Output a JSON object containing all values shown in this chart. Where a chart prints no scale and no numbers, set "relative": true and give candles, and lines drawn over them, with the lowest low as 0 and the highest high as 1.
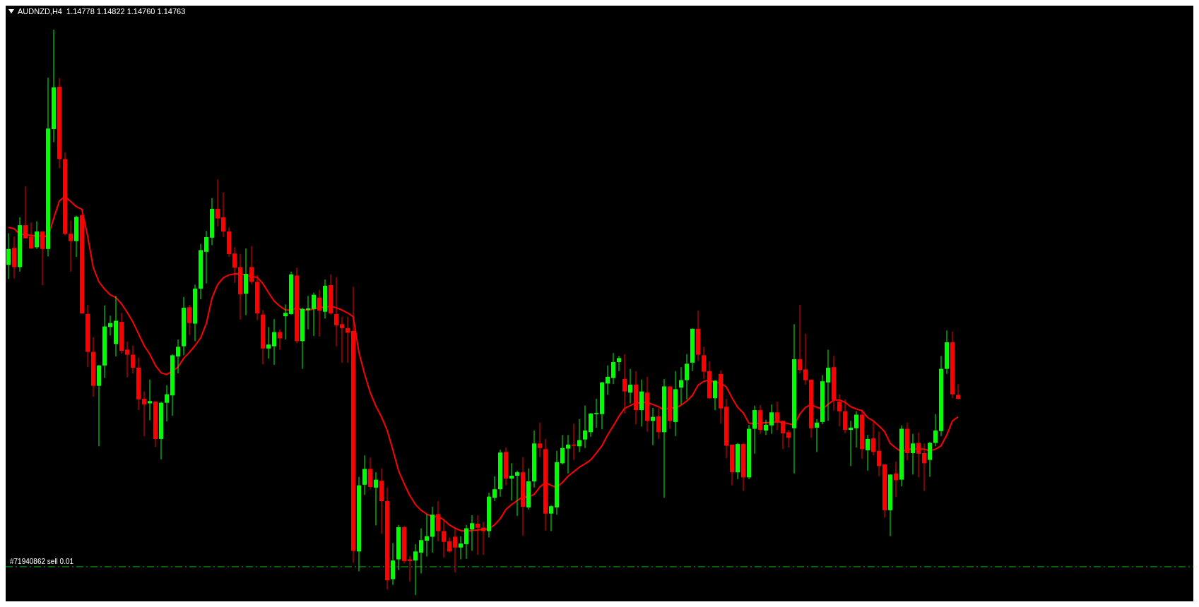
{
  "chart_data": {
    "type": "candlestick",
    "title": "AUDNZD,H4  1.14778 1.14822 1.14760 1.14763",
    "relative": true,
    "tick_labels": false,
    "categories": [
      null,
      null,
      null,
      null,
      null,
      null,
      null,
      null,
      null,
      null,
      null,
      null,
      null,
      null,
      null,
      null,
      null,
      null,
      null,
      null,
      null,
      null,
      null,
      null,
      null,
      null,
      null,
      null,
      null,
      null,
      null,
      null,
      null,
      null,
      null,
      null,
      null,
      null,
      null,
      null,
      null,
      null,
      null,
      null,
      null,
      null,
      null,
      null,
      null,
      null,
      null,
      null,
      null,
      null,
      null,
      null,
      null,
      null,
      null,
      null,
      null,
      null,
      null,
      null,
      null,
      null,
      null,
      null,
      null,
      null,
      null,
      null,
      null,
      null,
      null,
      null,
      null,
      null,
      null,
      null,
      null,
      null,
      null,
      null,
      null,
      null,
      null,
      null,
      null,
      null,
      null,
      null,
      null,
      null,
      null,
      null,
      null,
      null,
      null,
      null,
      null,
      null,
      null,
      null,
      null,
      null,
      null,
      null,
      null,
      null,
      null,
      null,
      null,
      null,
      null,
      null,
      null,
      null,
      null,
      null,
      null,
      null,
      null,
      null,
      null,
      null,
      null,
      null,
      null,
      null,
      null,
      null,
      null,
      null,
      null,
      null,
      null,
      null,
      null,
      null,
      null,
      null,
      null,
      null,
      null,
      null,
      null,
      null,
      null,
      null,
      null,
      null,
      null,
      null,
      null,
      null,
      null,
      null,
      null,
      null,
      null,
      null,
      null,
      null,
      null,
      null,
      null,
      null,
      null
    ],
    "ohlc": [
      [
        0.584,
        0.64,
        0.559,
        0.612
      ],
      [
        0.614,
        0.634,
        0.56,
        0.58
      ],
      [
        0.58,
        0.668,
        0.572,
        0.654
      ],
      [
        0.654,
        0.723,
        0.631,
        0.631
      ],
      [
        0.634,
        0.659,
        0.612,
        0.613
      ],
      [
        0.615,
        0.661,
        0.612,
        0.643
      ],
      [
        0.643,
        0.643,
        0.548,
        0.612
      ],
      [
        0.612,
        0.915,
        0.599,
        0.825
      ],
      [
        0.824,
        1,
        0.801,
        0.898
      ],
      [
        0.899,
        0.914,
        0.755,
        0.771
      ],
      [
        0.771,
        0.783,
        0.636,
        0.639
      ],
      [
        0.639,
        0.662,
        0.572,
        0.626
      ],
      [
        0.626,
        0.671,
        0.598,
        0.669
      ],
      [
        0.672,
        0.672,
        0.498,
        0.498
      ],
      [
        0.497,
        0.513,
        0.403,
        0.43
      ],
      [
        0.43,
        0.456,
        0.351,
        0.37
      ],
      [
        0.37,
        0.407,
        0.263,
        0.406
      ],
      [
        0.406,
        0.512,
        0.384,
        0.475
      ],
      [
        0.474,
        0.494,
        0.459,
        0.481
      ],
      [
        0.444,
        0.529,
        0.422,
        0.485
      ],
      [
        0.483,
        0.499,
        0.427,
        0.432
      ],
      [
        0.434,
        0.448,
        0.385,
        0.425
      ],
      [
        0.425,
        0.441,
        0.392,
        0.402
      ],
      [
        0.402,
        0.42,
        0.327,
        0.346
      ],
      [
        0.347,
        0.36,
        0.281,
        0.337
      ],
      [
        0.339,
        0.381,
        0.309,
        0.343
      ],
      [
        0.342,
        0.342,
        0.262,
        0.276
      ],
      [
        0.276,
        0.342,
        0.24,
        0.34
      ],
      [
        0.34,
        0.371,
        0.307,
        0.355
      ],
      [
        0.353,
        0.426,
        0.317,
        0.424
      ],
      [
        0.422,
        0.452,
        0.392,
        0.439
      ],
      [
        0.44,
        0.527,
        0.424,
        0.508
      ],
      [
        0.509,
        0.513,
        0.46,
        0.481
      ],
      [
        0.48,
        0.549,
        0.449,
        0.542
      ],
      [
        0.542,
        0.621,
        0.523,
        0.61
      ],
      [
        0.607,
        0.644,
        0.551,
        0.633
      ],
      [
        0.632,
        0.702,
        0.619,
        0.683
      ],
      [
        0.683,
        0.735,
        0.652,
        0.666
      ],
      [
        0.668,
        0.712,
        0.633,
        0.643
      ],
      [
        0.643,
        0.65,
        0.598,
        0.603
      ],
      [
        0.604,
        0.615,
        0.552,
        0.579
      ],
      [
        0.58,
        0.603,
        0.487,
        0.532
      ],
      [
        0.533,
        0.613,
        0.495,
        0.568
      ],
      [
        0.58,
        0.617,
        0.55,
        0.554
      ],
      [
        0.554,
        0.566,
        0.486,
        0.498
      ],
      [
        0.496,
        0.504,
        0.408,
        0.436
      ],
      [
        0.436,
        0.474,
        0.418,
        0.443
      ],
      [
        0.44,
        0.488,
        0.407,
        0.465
      ],
      [
        0.465,
        0.47,
        0.434,
        0.454
      ],
      [
        0.493,
        0.514,
        0.452,
        0.499
      ],
      [
        0.497,
        0.572,
        0.496,
        0.567
      ],
      [
        0.565,
        0.579,
        0.445,
        0.449
      ],
      [
        0.449,
        0.508,
        0.4,
        0.506
      ],
      [
        0.504,
        0.529,
        0.47,
        0.507
      ],
      [
        0.506,
        0.535,
        0.458,
        0.531
      ],
      [
        0.526,
        0.54,
        0.457,
        0.503
      ],
      [
        0.501,
        0.558,
        0.489,
        0.547
      ],
      [
        0.548,
        0.567,
        0.496,
        0.498
      ],
      [
        0.497,
        0.562,
        0.44,
        0.477
      ],
      [
        0.479,
        0.492,
        0.411,
        0.472
      ],
      [
        0.472,
        0.492,
        0.411,
        0.464
      ],
      [
        0.467,
        0.545,
        0.057,
        0.078
      ],
      [
        0.077,
        0.209,
        0.042,
        0.194
      ],
      [
        0.195,
        0.247,
        0.177,
        0.223
      ],
      [
        0.223,
        0.243,
        0.187,
        0.191
      ],
      [
        0.19,
        0.217,
        0.123,
        0.204
      ],
      [
        0.202,
        0.224,
        0.108,
        0.166
      ],
      [
        0.166,
        0.19,
        0.01,
        0.026
      ],
      [
        0.028,
        0.092,
        0.018,
        0.061
      ],
      [
        0.063,
        0.124,
        0.044,
        0.12
      ],
      [
        0.12,
        0.122,
        0.056,
        0.06
      ],
      [
        0.063,
        0.069,
        0.024,
        0.06
      ],
      [
        0.061,
        0.09,
        0,
        0.077
      ],
      [
        0.075,
        0.118,
        0.038,
        0.097
      ],
      [
        0.096,
        0.143,
        0.068,
        0.104
      ],
      [
        0.103,
        0.156,
        0.075,
        0.142
      ],
      [
        0.143,
        0.166,
        0.095,
        0.113
      ],
      [
        0.113,
        0.134,
        0.066,
        0.094
      ],
      [
        0.095,
        0.102,
        0.075,
        0.077
      ],
      [
        0.103,
        0.12,
        0.04,
        0.084
      ],
      [
        0.084,
        0.104,
        0.063,
        0.091
      ],
      [
        0.09,
        0.124,
        0.064,
        0.118
      ],
      [
        0.116,
        0.141,
        0.078,
        0.127
      ],
      [
        0.126,
        0.141,
        0.071,
        0.119
      ],
      [
        0.119,
        0.129,
        0.071,
        0.113
      ],
      [
        0.113,
        0.181,
        0.102,
        0.174
      ],
      [
        0.172,
        0.21,
        0.166,
        0.187
      ],
      [
        0.187,
        0.257,
        0.174,
        0.252
      ],
      [
        0.253,
        0.261,
        0.194,
        0.206
      ],
      [
        0.206,
        0.233,
        0.167,
        0.211
      ],
      [
        0.211,
        0.22,
        0.14,
        0.217
      ],
      [
        0.217,
        0.244,
        0.105,
        0.156
      ],
      [
        0.155,
        0.224,
        0.151,
        0.201
      ],
      [
        0.201,
        0.291,
        0.19,
        0.268
      ],
      [
        0.268,
        0.305,
        0.244,
        0.26
      ],
      [
        0.258,
        0.276,
        0.114,
        0.144
      ],
      [
        0.144,
        0.159,
        0.113,
        0.157
      ],
      [
        0.155,
        0.255,
        0.142,
        0.235
      ],
      [
        0.233,
        0.283,
        0.231,
        0.26
      ],
      [
        0.259,
        0.283,
        0.215,
        0.266
      ],
      [
        0.266,
        0.303,
        0.239,
        0.264
      ],
      [
        0.263,
        0.311,
        0.253,
        0.274
      ],
      [
        0.275,
        0.335,
        0.26,
        0.291
      ],
      [
        0.288,
        0.322,
        0.28,
        0.321
      ],
      [
        0.32,
        0.347,
        0.296,
        0.322
      ],
      [
        0.32,
        0.377,
        0.293,
        0.376
      ],
      [
        0.374,
        0.406,
        0.354,
        0.386
      ],
      [
        0.384,
        0.428,
        0.373,
        0.412
      ],
      [
        0.412,
        0.423,
        0.396,
        0.419
      ],
      [
        0.382,
        0.426,
        0.321,
        0.36
      ],
      [
        0.358,
        0.4,
        0.339,
        0.372
      ],
      [
        0.372,
        0.396,
        0.302,
        0.327
      ],
      [
        0.327,
        0.381,
        0.298,
        0.36
      ],
      [
        0.358,
        0.386,
        0.289,
        0.308
      ],
      [
        0.308,
        0.331,
        0.265,
        0.315
      ],
      [
        0.316,
        0.331,
        0.276,
        0.288
      ],
      [
        0.288,
        0.382,
        0.172,
        0.369
      ],
      [
        0.369,
        0.369,
        0.294,
        0.308
      ],
      [
        0.306,
        0.396,
        0.281,
        0.364
      ],
      [
        0.367,
        0.403,
        0.337,
        0.38
      ],
      [
        0.38,
        0.426,
        0.346,
        0.409
      ],
      [
        0.411,
        0.471,
        0.396,
        0.471
      ],
      [
        0.471,
        0.503,
        0.414,
        0.425
      ],
      [
        0.424,
        0.439,
        0.382,
        0.395
      ],
      [
        0.396,
        0.413,
        0.347,
        0.348
      ],
      [
        0.348,
        0.38,
        0.327,
        0.379
      ],
      [
        0.391,
        0.397,
        0.303,
        0.33
      ],
      [
        0.333,
        0.347,
        0.242,
        0.264
      ],
      [
        0.266,
        0.266,
        0.194,
        0.217
      ],
      [
        0.217,
        0.269,
        0.205,
        0.267
      ],
      [
        0.267,
        0.269,
        0.184,
        0.208
      ],
      [
        0.208,
        0.301,
        0.205,
        0.294
      ],
      [
        0.294,
        0.335,
        0.25,
        0.327
      ],
      [
        0.327,
        0.336,
        0.285,
        0.292
      ],
      [
        0.291,
        0.31,
        0.283,
        0.301
      ],
      [
        0.3,
        0.337,
        0.285,
        0.323
      ],
      [
        0.323,
        0.342,
        0.292,
        0.305
      ],
      [
        0.308,
        0.308,
        0.258,
        0.286
      ],
      [
        0.288,
        0.292,
        0.261,
        0.278
      ],
      [
        0.295,
        0.479,
        0.215,
        0.417
      ],
      [
        0.417,
        0.513,
        0.392,
        0.398
      ],
      [
        0.399,
        0.462,
        0.372,
        0.38
      ],
      [
        0.381,
        0.381,
        0.278,
        0.295
      ],
      [
        0.296,
        0.311,
        0.253,
        0.305
      ],
      [
        0.306,
        0.389,
        0.302,
        0.378
      ],
      [
        0.376,
        0.434,
        0.308,
        0.402
      ],
      [
        0.403,
        0.423,
        0.326,
        0.345
      ],
      [
        0.342,
        0.355,
        0.298,
        0.325
      ],
      [
        0.325,
        0.346,
        0.286,
        0.292
      ],
      [
        0.292,
        0.308,
        0.228,
        0.296
      ],
      [
        0.295,
        0.325,
        0.261,
        0.319
      ],
      [
        0.319,
        0.328,
        0.241,
        0.258
      ],
      [
        0.256,
        0.283,
        0.22,
        0.276
      ],
      [
        0.277,
        0.306,
        0.247,
        0.253
      ],
      [
        0.255,
        0.289,
        0.21,
        0.228
      ],
      [
        0.231,
        0.231,
        0.137,
        0.15
      ],
      [
        0.15,
        0.213,
        0.104,
        0.213
      ],
      [
        0.215,
        0.236,
        0.173,
        0.203
      ],
      [
        0.204,
        0.3,
        0.192,
        0.294
      ],
      [
        0.294,
        0.305,
        0.238,
        0.251
      ],
      [
        0.251,
        0.285,
        0.213,
        0.268
      ],
      [
        0.269,
        0.287,
        0.208,
        0.25
      ],
      [
        0.251,
        0.268,
        0.184,
        0.233
      ],
      [
        0.239,
        0.271,
        0.209,
        0.269
      ],
      [
        0.269,
        0.32,
        0.263,
        0.291
      ],
      [
        0.29,
        0.423,
        0.281,
        0.4
      ],
      [
        0.4,
        0.468,
        0.391,
        0.447
      ],
      [
        0.447,
        0.466,
        0.348,
        0.355
      ],
      [
        0.354,
        0.373,
        0.346,
        0.347
      ]
    ],
    "colors": [
      "#00ff00",
      "#ff0000",
      "#00ff00",
      "#ff0000",
      "#ff0000",
      "#00ff00",
      "#ff0000",
      "#00ff00",
      "#00ff00",
      "#ff0000",
      "#ff0000",
      "#ff0000",
      "#00ff00",
      "#ff0000",
      "#ff0000",
      "#ff0000",
      "#00ff00",
      "#00ff00",
      "#00ff00",
      "#00ff00",
      "#ff0000",
      "#ff0000",
      "#ff0000",
      "#ff0000",
      "#ff0000",
      "#00ff00",
      "#ff0000",
      "#00ff00",
      "#00ff00",
      "#00ff00",
      "#00ff00",
      "#00ff00",
      "#ff0000",
      "#00ff00",
      "#00ff00",
      "#00ff00",
      "#00ff00",
      "#ff0000",
      "#ff0000",
      "#ff0000",
      "#ff0000",
      "#ff0000",
      "#00ff00",
      "#ff0000",
      "#ff0000",
      "#ff0000",
      "#00ff00",
      "#00ff00",
      "#ff0000",
      "#00ff00",
      "#00ff00",
      "#ff0000",
      "#00ff00",
      "#00ff00",
      "#00ff00",
      "#ff0000",
      "#00ff00",
      "#ff0000",
      "#ff0000",
      "#ff0000",
      "#ff0000",
      "#ff0000",
      "#00ff00",
      "#00ff00",
      "#ff0000",
      "#00ff00",
      "#ff0000",
      "#ff0000",
      "#00ff00",
      "#00ff00",
      "#ff0000",
      "#ff0000",
      "#00ff00",
      "#00ff00",
      "#00ff00",
      "#00ff00",
      "#ff0000",
      "#ff0000",
      "#ff0000",
      "#ff0000",
      "#00ff00",
      "#00ff00",
      "#00ff00",
      "#ff0000",
      "#ff0000",
      "#00ff00",
      "#00ff00",
      "#00ff00",
      "#ff0000",
      "#00ff00",
      "#00ff00",
      "#ff0000",
      "#00ff00",
      "#00ff00",
      "#ff0000",
      "#ff0000",
      "#00ff00",
      "#00ff00",
      "#00ff00",
      "#00ff00",
      "#ff0000",
      "#00ff00",
      "#00ff00",
      "#00ff00",
      "#00ff00",
      "#00ff00",
      "#00ff00",
      "#00ff00",
      "#00ff00",
      "#ff0000",
      "#00ff00",
      "#ff0000",
      "#00ff00",
      "#ff0000",
      "#00ff00",
      "#ff0000",
      "#00ff00",
      "#ff0000",
      "#00ff00",
      "#00ff00",
      "#00ff00",
      "#00ff00",
      "#ff0000",
      "#ff0000",
      "#ff0000",
      "#00ff00",
      "#ff0000",
      "#ff0000",
      "#ff0000",
      "#00ff00",
      "#ff0000",
      "#00ff00",
      "#00ff00",
      "#ff0000",
      "#00ff00",
      "#00ff00",
      "#ff0000",
      "#ff0000",
      "#ff0000",
      "#00ff00",
      "#ff0000",
      "#ff0000",
      "#ff0000",
      "#00ff00",
      "#00ff00",
      "#00ff00",
      "#ff0000",
      "#ff0000",
      "#ff0000",
      "#00ff00",
      "#00ff00",
      "#ff0000",
      "#00ff00",
      "#ff0000",
      "#ff0000",
      "#ff0000",
      "#00ff00",
      "#ff0000",
      "#00ff00",
      "#ff0000",
      "#00ff00",
      "#ff0000",
      "#ff0000",
      "#00ff00",
      "#00ff00",
      "#00ff00",
      "#00ff00",
      "#ff0000",
      "#ff0000"
    ],
    "series": [
      {
        "type": "line",
        "color": "#ff0000",
        "values": [
          0.65,
          0.648,
          0.638,
          0.638,
          0.636,
          0.635,
          0.635,
          0.634,
          0.666,
          0.697,
          0.705,
          0.696,
          0.687,
          0.682,
          0.635,
          0.579,
          0.554,
          0.541,
          0.531,
          0.526,
          0.515,
          0.5,
          0.483,
          0.462,
          0.441,
          0.426,
          0.406,
          0.393,
          0.39,
          0.396,
          0.403,
          0.419,
          0.429,
          0.441,
          0.455,
          0.48,
          0.525,
          0.549,
          0.561,
          0.566,
          0.568,
          0.568,
          0.566,
          0.563,
          0.562,
          0.551,
          0.535,
          0.52,
          0.511,
          0.504,
          0.504,
          0.508,
          0.504,
          0.504,
          0.506,
          0.508,
          0.509,
          0.511,
          0.508,
          0.504,
          0.499,
          0.492,
          0.429,
          0.391,
          0.358,
          0.334,
          0.315,
          0.291,
          0.257,
          0.22,
          0.197,
          0.176,
          0.16,
          0.15,
          0.143,
          0.139,
          0.139,
          0.133,
          0.124,
          0.118,
          0.114,
          0.113,
          0.114,
          0.115,
          0.116,
          0.117,
          0.124,
          0.135,
          0.151,
          0.16,
          0.167,
          0.174,
          0.173,
          0.178,
          0.191,
          0.199,
          0.194,
          0.19,
          0.199,
          0.21,
          0.218,
          0.226,
          0.232,
          0.239,
          0.251,
          0.264,
          0.283,
          0.299,
          0.316,
          0.33,
          0.335,
          0.34,
          0.34,
          0.341,
          0.337,
          0.333,
          0.327,
          0.332,
          0.33,
          0.336,
          0.343,
          0.353,
          0.371,
          0.378,
          0.38,
          0.376,
          0.375,
          0.368,
          0.349,
          0.332,
          0.322,
          0.304,
          0.303,
          0.304,
          0.305,
          0.305,
          0.307,
          0.305,
          0.303,
          0.301,
          0.32,
          0.332,
          0.337,
          0.332,
          0.329,
          0.337,
          0.345,
          0.345,
          0.341,
          0.333,
          0.329,
          0.326,
          0.314,
          0.308,
          0.299,
          0.289,
          0.268,
          0.26,
          0.253,
          0.258,
          0.258,
          0.258,
          0.258,
          0.255,
          0.258,
          0.264,
          0.283,
          0.308,
          0.315
        ]
      }
    ],
    "ref_lines": [
      {
        "axis": "y",
        "value": 0.05,
        "label": "#71940862 sell 0.01",
        "color": "#00c000",
        "line_style": "dashed"
      }
    ]
  }
}
